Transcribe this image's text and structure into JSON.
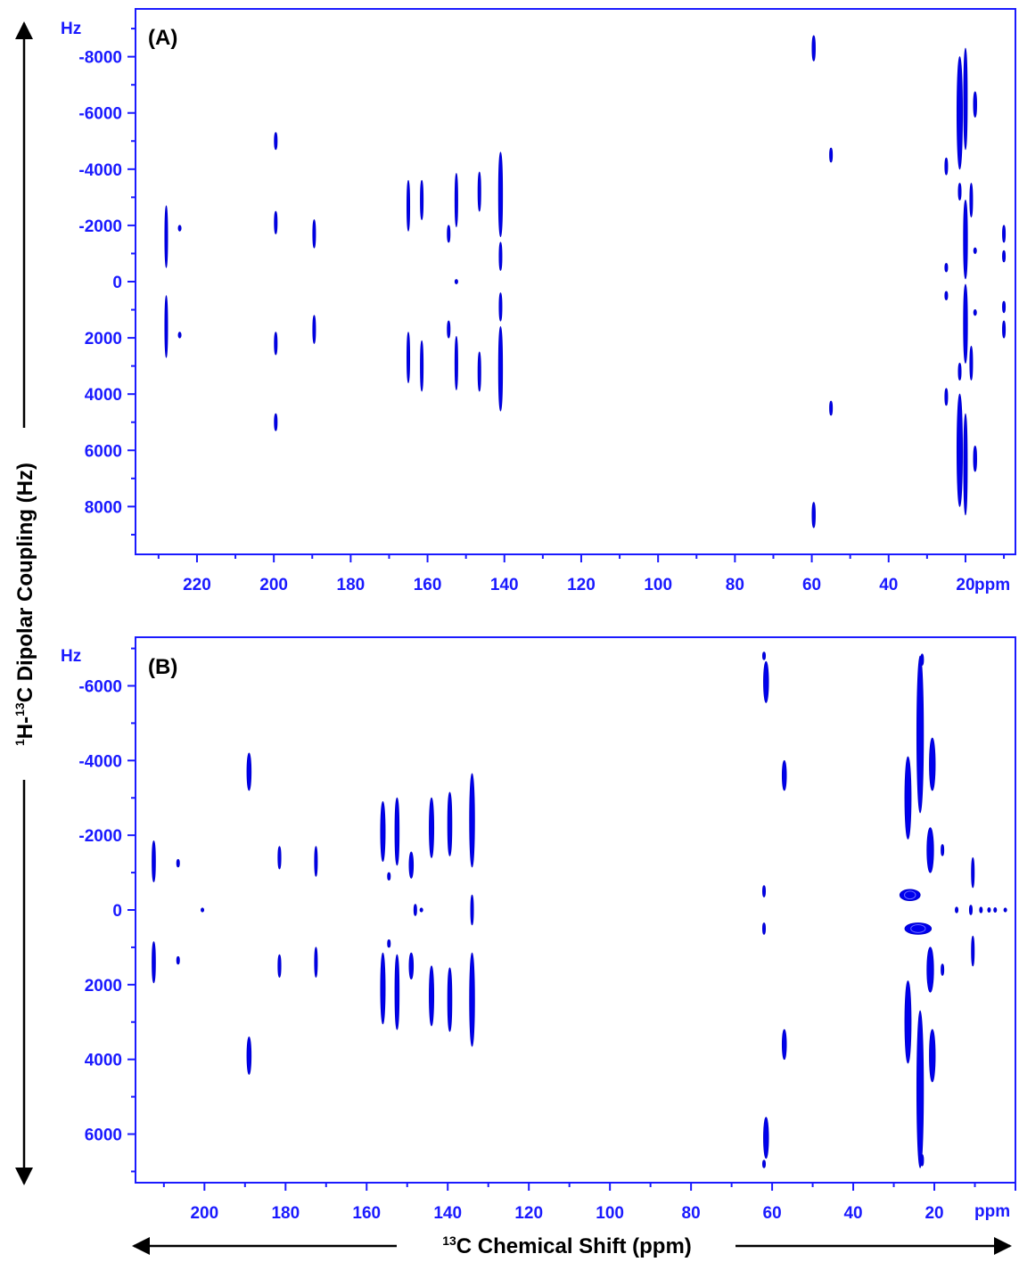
{
  "figure": {
    "y_axis_title": {
      "sup1": "1",
      "mid": "H-",
      "sup2": "13",
      "rest": "C Dipolar Coupling (Hz)"
    },
    "x_axis_title": {
      "sup": "13",
      "rest": "C Chemical Shift (ppm)"
    }
  },
  "colors": {
    "axis": "#1a1aff",
    "peaks": "#0000ee",
    "text": "#000000"
  },
  "chart_data": [
    {
      "type": "contour",
      "panel_label": "(A)",
      "xlabel": "ppm",
      "ylabel": "Hz",
      "x_reversed": true,
      "y_reversed": true,
      "xlim": [
        236,
        7
      ],
      "ylim": [
        -9700,
        9700
      ],
      "x_ticks": [
        220,
        200,
        180,
        160,
        140,
        120,
        100,
        80,
        60,
        40,
        20
      ],
      "x_tick_labels": [
        "220",
        "200",
        "180",
        "160",
        "140",
        "120",
        "100",
        "80",
        "60",
        "40",
        "20"
      ],
      "y_ticks": [
        -8000,
        -6000,
        -4000,
        -2000,
        0,
        2000,
        4000,
        6000,
        8000
      ],
      "y_tick_labels": [
        "-8000",
        "-6000",
        "-4000",
        "-2000",
        "0",
        "2000",
        "4000",
        "6000",
        "8000"
      ],
      "peaks": [
        {
          "ppm": 228,
          "hz": -1600,
          "w": 0.5,
          "h": 2200
        },
        {
          "ppm": 228,
          "hz": 1600,
          "w": 0.5,
          "h": 2200
        },
        {
          "ppm": 224.5,
          "hz": -1900,
          "w": 0.3,
          "h": 200
        },
        {
          "ppm": 224.5,
          "hz": 1900,
          "w": 0.3,
          "h": 200
        },
        {
          "ppm": 199.5,
          "hz": -5000,
          "w": 0.7,
          "h": 600
        },
        {
          "ppm": 199.5,
          "hz": -2100,
          "w": 0.6,
          "h": 800
        },
        {
          "ppm": 199.5,
          "hz": 2200,
          "w": 0.6,
          "h": 800
        },
        {
          "ppm": 199.5,
          "hz": 5000,
          "w": 0.7,
          "h": 600
        },
        {
          "ppm": 189.5,
          "hz": -1700,
          "w": 0.5,
          "h": 1000
        },
        {
          "ppm": 189.5,
          "hz": 1700,
          "w": 0.5,
          "h": 1000
        },
        {
          "ppm": 165,
          "hz": -2700,
          "w": 0.7,
          "h": 1800
        },
        {
          "ppm": 165,
          "hz": 2700,
          "w": 0.7,
          "h": 1800
        },
        {
          "ppm": 161.5,
          "hz": -2900,
          "w": 0.7,
          "h": 1400
        },
        {
          "ppm": 161.5,
          "hz": 3000,
          "w": 0.7,
          "h": 1800
        },
        {
          "ppm": 154.5,
          "hz": -1700,
          "w": 0.6,
          "h": 600
        },
        {
          "ppm": 154.5,
          "hz": 1700,
          "w": 0.6,
          "h": 600
        },
        {
          "ppm": 152.5,
          "hz": -2900,
          "w": 0.7,
          "h": 1900
        },
        {
          "ppm": 152.5,
          "hz": 2900,
          "w": 0.7,
          "h": 1900
        },
        {
          "ppm": 152.5,
          "hz": 0,
          "w": 0.2,
          "h": 150
        },
        {
          "ppm": 146.5,
          "hz": -3200,
          "w": 0.7,
          "h": 1400
        },
        {
          "ppm": 146.5,
          "hz": 3200,
          "w": 0.7,
          "h": 1400
        },
        {
          "ppm": 141,
          "hz": -3100,
          "w": 1.0,
          "h": 3000
        },
        {
          "ppm": 141,
          "hz": 3100,
          "w": 1.0,
          "h": 3000
        },
        {
          "ppm": 141,
          "hz": -900,
          "w": 0.4,
          "h": 1000
        },
        {
          "ppm": 141,
          "hz": 900,
          "w": 0.4,
          "h": 1000
        },
        {
          "ppm": 59.5,
          "hz": -8300,
          "w": 0.8,
          "h": 900
        },
        {
          "ppm": 59.5,
          "hz": 8300,
          "w": 0.8,
          "h": 900
        },
        {
          "ppm": 55,
          "hz": -4500,
          "w": 0.5,
          "h": 500
        },
        {
          "ppm": 55,
          "hz": 4500,
          "w": 0.5,
          "h": 500
        },
        {
          "ppm": 25,
          "hz": -4100,
          "w": 0.6,
          "h": 600
        },
        {
          "ppm": 25,
          "hz": 4100,
          "w": 0.6,
          "h": 600
        },
        {
          "ppm": 25,
          "hz": -500,
          "w": 0.3,
          "h": 300
        },
        {
          "ppm": 25,
          "hz": 500,
          "w": 0.3,
          "h": 300
        },
        {
          "ppm": 21.5,
          "hz": -6000,
          "w": 1.4,
          "h": 4000
        },
        {
          "ppm": 21.5,
          "hz": 6000,
          "w": 1.4,
          "h": 4000
        },
        {
          "ppm": 20,
          "hz": -6500,
          "w": 0.9,
          "h": 3600
        },
        {
          "ppm": 20,
          "hz": 6500,
          "w": 0.9,
          "h": 3600
        },
        {
          "ppm": 17.5,
          "hz": -6300,
          "w": 0.8,
          "h": 900
        },
        {
          "ppm": 17.5,
          "hz": 6300,
          "w": 0.8,
          "h": 900
        },
        {
          "ppm": 21.5,
          "hz": -3200,
          "w": 0.4,
          "h": 600
        },
        {
          "ppm": 21.5,
          "hz": 3200,
          "w": 0.4,
          "h": 600
        },
        {
          "ppm": 18.5,
          "hz": -2900,
          "w": 0.5,
          "h": 1200
        },
        {
          "ppm": 18.5,
          "hz": 2900,
          "w": 0.5,
          "h": 1200
        },
        {
          "ppm": 20,
          "hz": -1500,
          "w": 1.0,
          "h": 2800
        },
        {
          "ppm": 20,
          "hz": 1500,
          "w": 1.0,
          "h": 2800
        },
        {
          "ppm": 17.5,
          "hz": -1100,
          "w": 0.2,
          "h": 200
        },
        {
          "ppm": 17.5,
          "hz": 1100,
          "w": 0.2,
          "h": 200
        },
        {
          "ppm": 10,
          "hz": -1700,
          "w": 0.5,
          "h": 600
        },
        {
          "ppm": 10,
          "hz": -900,
          "w": 0.3,
          "h": 400
        },
        {
          "ppm": 10,
          "hz": 900,
          "w": 0.3,
          "h": 400
        },
        {
          "ppm": 10,
          "hz": 1700,
          "w": 0.5,
          "h": 600
        }
      ]
    },
    {
      "type": "contour",
      "panel_label": "(B)",
      "xlabel": "ppm",
      "ylabel": "Hz",
      "x_reversed": true,
      "y_reversed": true,
      "xlim": [
        217,
        0
      ],
      "ylim": [
        -7300,
        7300
      ],
      "x_ticks": [
        200,
        180,
        160,
        140,
        120,
        100,
        80,
        60,
        40,
        20
      ],
      "x_tick_labels": [
        "200",
        "180",
        "160",
        "140",
        "120",
        "100",
        "80",
        "60",
        "40",
        "20"
      ],
      "y_ticks": [
        -6000,
        -4000,
        -2000,
        0,
        2000,
        4000,
        6000
      ],
      "y_tick_labels": [
        "-6000",
        "-4000",
        "-2000",
        "0",
        "2000",
        "4000",
        "6000"
      ],
      "peaks": [
        {
          "ppm": 212.5,
          "hz": -1300,
          "w": 0.8,
          "h": 1100
        },
        {
          "ppm": 212.5,
          "hz": 1400,
          "w": 0.8,
          "h": 1100
        },
        {
          "ppm": 206.5,
          "hz": -1250,
          "w": 0.3,
          "h": 200
        },
        {
          "ppm": 206.5,
          "hz": 1350,
          "w": 0.3,
          "h": 200
        },
        {
          "ppm": 200.5,
          "hz": 0,
          "w": 0.4,
          "h": 100
        },
        {
          "ppm": 189,
          "hz": -3700,
          "w": 1.0,
          "h": 1000
        },
        {
          "ppm": 189,
          "hz": 3900,
          "w": 1.0,
          "h": 1000
        },
        {
          "ppm": 181.5,
          "hz": -1400,
          "w": 0.7,
          "h": 600
        },
        {
          "ppm": 181.5,
          "hz": 1500,
          "w": 0.7,
          "h": 600
        },
        {
          "ppm": 172.5,
          "hz": -1300,
          "w": 0.6,
          "h": 800
        },
        {
          "ppm": 172.5,
          "hz": 1400,
          "w": 0.6,
          "h": 800
        },
        {
          "ppm": 156,
          "hz": -2100,
          "w": 1.1,
          "h": 1600
        },
        {
          "ppm": 156,
          "hz": 2100,
          "w": 1.1,
          "h": 1900
        },
        {
          "ppm": 154.5,
          "hz": -900,
          "w": 0.3,
          "h": 200
        },
        {
          "ppm": 154.5,
          "hz": 900,
          "w": 0.3,
          "h": 200
        },
        {
          "ppm": 152.5,
          "hz": -2100,
          "w": 1.0,
          "h": 1800
        },
        {
          "ppm": 152.5,
          "hz": 2200,
          "w": 1.0,
          "h": 2000
        },
        {
          "ppm": 149,
          "hz": -1200,
          "w": 1.0,
          "h": 700
        },
        {
          "ppm": 149,
          "hz": 1500,
          "w": 1.0,
          "h": 700
        },
        {
          "ppm": 148,
          "hz": 0,
          "w": 0.4,
          "h": 300
        },
        {
          "ppm": 146.5,
          "hz": 0,
          "w": 0.2,
          "h": 100
        },
        {
          "ppm": 144,
          "hz": -2200,
          "w": 1.1,
          "h": 1600
        },
        {
          "ppm": 144,
          "hz": 2300,
          "w": 1.1,
          "h": 1600
        },
        {
          "ppm": 139.5,
          "hz": -2300,
          "w": 1.0,
          "h": 1700
        },
        {
          "ppm": 139.5,
          "hz": 2400,
          "w": 1.0,
          "h": 1700
        },
        {
          "ppm": 134,
          "hz": -2400,
          "w": 1.2,
          "h": 2500
        },
        {
          "ppm": 134,
          "hz": 2400,
          "w": 1.2,
          "h": 2500
        },
        {
          "ppm": 134,
          "hz": 0,
          "w": 0.4,
          "h": 800
        },
        {
          "ppm": 61.5,
          "hz": -6100,
          "w": 1.2,
          "h": 1100
        },
        {
          "ppm": 61.5,
          "hz": 6100,
          "w": 1.2,
          "h": 1100
        },
        {
          "ppm": 62,
          "hz": -6800,
          "w": 0.4,
          "h": 200
        },
        {
          "ppm": 62,
          "hz": 6800,
          "w": 0.4,
          "h": 200
        },
        {
          "ppm": 62,
          "hz": -500,
          "w": 0.4,
          "h": 300
        },
        {
          "ppm": 62,
          "hz": 500,
          "w": 0.4,
          "h": 300
        },
        {
          "ppm": 57,
          "hz": -3600,
          "w": 1.0,
          "h": 800
        },
        {
          "ppm": 57,
          "hz": 3600,
          "w": 1.0,
          "h": 800
        },
        {
          "ppm": 23.5,
          "hz": -4700,
          "w": 1.6,
          "h": 4200
        },
        {
          "ppm": 23.5,
          "hz": 4800,
          "w": 1.6,
          "h": 4200
        },
        {
          "ppm": 26.5,
          "hz": -3000,
          "w": 1.5,
          "h": 2200
        },
        {
          "ppm": 26.5,
          "hz": 3000,
          "w": 1.5,
          "h": 2200
        },
        {
          "ppm": 20.5,
          "hz": -3900,
          "w": 1.4,
          "h": 1400
        },
        {
          "ppm": 20.5,
          "hz": 3900,
          "w": 1.4,
          "h": 1400
        },
        {
          "ppm": 21,
          "hz": -1600,
          "w": 1.6,
          "h": 1200
        },
        {
          "ppm": 21,
          "hz": 1600,
          "w": 1.6,
          "h": 1200
        },
        {
          "ppm": 18,
          "hz": -1600,
          "w": 0.6,
          "h": 300
        },
        {
          "ppm": 18,
          "hz": 1600,
          "w": 0.6,
          "h": 300
        },
        {
          "ppm": 23,
          "hz": -6700,
          "w": 0.5,
          "h": 300
        },
        {
          "ppm": 23,
          "hz": 6700,
          "w": 0.5,
          "h": 300
        },
        {
          "ppm": 26,
          "hz": -400,
          "w": 5.0,
          "h": 300
        },
        {
          "ppm": 24,
          "hz": 500,
          "w": 6.5,
          "h": 300
        },
        {
          "ppm": 10.5,
          "hz": -1000,
          "w": 0.6,
          "h": 800
        },
        {
          "ppm": 10.5,
          "hz": 1100,
          "w": 0.6,
          "h": 800
        },
        {
          "ppm": 14.5,
          "hz": 0,
          "w": 0.3,
          "h": 150
        },
        {
          "ppm": 11,
          "hz": 0,
          "w": 0.5,
          "h": 250
        },
        {
          "ppm": 8.5,
          "hz": 0,
          "w": 0.4,
          "h": 150
        },
        {
          "ppm": 6.5,
          "hz": 0,
          "w": 0.3,
          "h": 120
        },
        {
          "ppm": 5,
          "hz": 0,
          "w": 0.3,
          "h": 120
        },
        {
          "ppm": 2.5,
          "hz": 0,
          "w": 0.3,
          "h": 100
        }
      ]
    }
  ]
}
